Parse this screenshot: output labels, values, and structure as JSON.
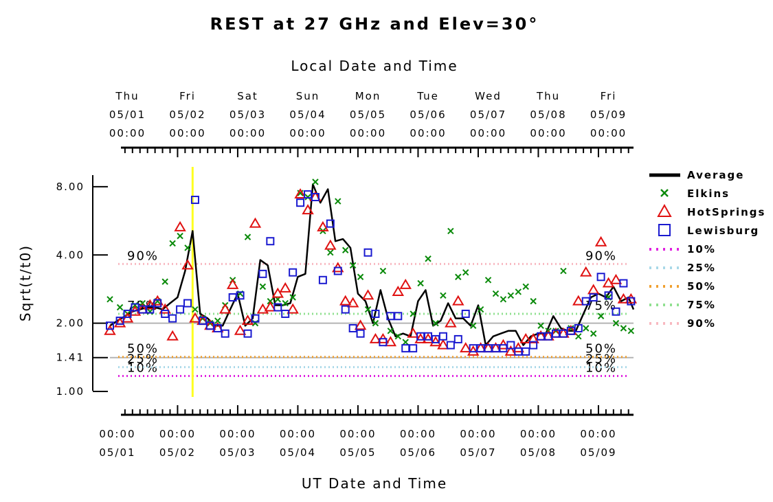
{
  "chart_data": {
    "type": "scatter",
    "title": "REST at 27 GHz and Elev=30°",
    "xlabel_top": "Local Date and Time",
    "xlabel_bottom": "UT Date and Time",
    "ylabel": "Sqrt(t/t0)",
    "x_range": [
      "04/30 21:00",
      "05/09 14:00"
    ],
    "ylim": [
      1.0,
      9.0
    ],
    "y_scale": "log",
    "y_ticks": [
      "1.00",
      "1.41",
      "2.00",
      "4.00",
      "8.00"
    ],
    "y_tick_values": [
      1.0,
      1.41,
      2.0,
      4.0,
      8.0
    ],
    "top_ticks": [
      {
        "day": "Thu",
        "date": "05/01",
        "time": "00:00"
      },
      {
        "day": "Fri",
        "date": "05/02",
        "time": "00:00"
      },
      {
        "day": "Sat",
        "date": "05/03",
        "time": "00:00"
      },
      {
        "day": "Sun",
        "date": "05/04",
        "time": "00:00"
      },
      {
        "day": "Mon",
        "date": "05/05",
        "time": "00:00"
      },
      {
        "day": "Tue",
        "date": "05/06",
        "time": "00:00"
      },
      {
        "day": "Wed",
        "date": "05/07",
        "time": "00:00"
      },
      {
        "day": "Thu",
        "date": "05/08",
        "time": "00:00"
      },
      {
        "day": "Fri",
        "date": "05/09",
        "time": "00:00"
      }
    ],
    "bottom_ticks": [
      {
        "time": "00:00",
        "date": "05/01"
      },
      {
        "time": "00:00",
        "date": "05/02"
      },
      {
        "time": "00:00",
        "date": "05/03"
      },
      {
        "time": "00:00",
        "date": "05/04"
      },
      {
        "time": "00:00",
        "date": "05/05"
      },
      {
        "time": "00:00",
        "date": "05/06"
      },
      {
        "time": "00:00",
        "date": "05/07"
      },
      {
        "time": "00:00",
        "date": "05/08"
      },
      {
        "time": "00:00",
        "date": "05/09"
      }
    ],
    "current_time": "05/02 06:00",
    "reference_lines": [
      1.41,
      2.0
    ],
    "percentiles": [
      {
        "name": "10%",
        "value": 1.17,
        "color": "#e020e0",
        "show_label": true
      },
      {
        "name": "25%",
        "value": 1.28,
        "color": "#a8d8e8",
        "show_label": true
      },
      {
        "name": "50%",
        "value": 1.42,
        "color": "#f0a030",
        "show_label": true
      },
      {
        "name": "75%",
        "value": 2.2,
        "color": "#90e090",
        "show_label": true
      },
      {
        "name": "90%",
        "value": 3.65,
        "color": "#f8b8c0",
        "show_label": true
      }
    ],
    "series": [
      {
        "name": "Average",
        "style": "line",
        "color": "#000000",
        "x": [
          "04/30 21:00",
          "05/01 00:00",
          "05/01 03:00",
          "05/01 06:00",
          "05/01 09:00",
          "05/01 12:00",
          "05/01 15:00",
          "05/01 18:00",
          "05/01 21:00",
          "05/02 00:00",
          "05/02 03:00",
          "05/02 06:00",
          "05/02 09:00",
          "05/02 12:00",
          "05/02 15:00",
          "05/02 18:00",
          "05/02 21:00",
          "05/03 00:00",
          "05/03 03:00",
          "05/03 06:00",
          "05/03 09:00",
          "05/03 12:00",
          "05/03 15:00",
          "05/03 18:00",
          "05/03 21:00",
          "05/04 00:00",
          "05/04 03:00",
          "05/04 06:00",
          "05/04 09:00",
          "05/04 12:00",
          "05/04 15:00",
          "05/04 18:00",
          "05/04 21:00",
          "05/05 00:00",
          "05/05 03:00",
          "05/05 06:00",
          "05/05 09:00",
          "05/05 12:00",
          "05/05 15:00",
          "05/05 18:00",
          "05/05 21:00",
          "05/06 00:00",
          "05/06 03:00",
          "05/06 06:00",
          "05/06 09:00",
          "05/06 12:00",
          "05/06 15:00",
          "05/06 18:00",
          "05/06 21:00",
          "05/07 00:00",
          "05/07 03:00",
          "05/07 06:00",
          "05/07 09:00",
          "05/07 12:00",
          "05/07 15:00",
          "05/07 18:00",
          "05/07 21:00",
          "05/08 00:00",
          "05/08 03:00",
          "05/08 06:00",
          "05/08 09:00",
          "05/08 12:00",
          "05/08 15:00",
          "05/08 18:00",
          "05/08 21:00",
          "05/09 00:00",
          "05/09 03:00",
          "05/09 06:00",
          "05/09 09:00",
          "05/09 12:00",
          "05/09 14:00"
        ],
        "y": [
          1.95,
          2.05,
          2.15,
          2.25,
          2.3,
          2.35,
          2.35,
          2.3,
          2.45,
          2.6,
          3.4,
          5.1,
          2.2,
          2.1,
          1.95,
          1.95,
          2.3,
          2.7,
          1.95,
          2.1,
          3.8,
          3.6,
          2.4,
          2.4,
          2.45,
          3.2,
          3.3,
          8.2,
          6.8,
          7.8,
          4.6,
          4.7,
          4.3,
          2.7,
          2.5,
          2.0,
          2.8,
          2.1,
          1.75,
          1.8,
          1.75,
          2.5,
          2.8,
          1.95,
          2.05,
          2.45,
          2.1,
          2.1,
          1.95,
          2.4,
          1.6,
          1.75,
          1.8,
          1.85,
          1.85,
          1.6,
          1.75,
          1.8,
          1.8,
          2.15,
          1.9,
          1.85,
          1.85,
          2.2,
          2.6,
          2.7,
          2.6,
          2.9,
          2.5,
          2.6,
          2.3
        ]
      },
      {
        "name": "Elkins",
        "style": "x",
        "color": "#0a8a0a",
        "x": [
          "04/30 21:00",
          "05/01 01:00",
          "05/01 04:00",
          "05/01 07:00",
          "05/01 10:00",
          "05/01 13:00",
          "05/01 16:00",
          "05/01 19:00",
          "05/01 22:00",
          "05/02 01:00",
          "05/02 04:00",
          "05/02 07:00",
          "05/02 10:00",
          "05/02 13:00",
          "05/02 16:00",
          "05/02 19:00",
          "05/02 22:00",
          "05/03 01:00",
          "05/03 04:00",
          "05/03 07:00",
          "05/03 10:00",
          "05/03 13:00",
          "05/03 16:00",
          "05/03 19:00",
          "05/03 22:00",
          "05/04 01:00",
          "05/04 04:00",
          "05/04 07:00",
          "05/04 10:00",
          "05/04 13:00",
          "05/04 16:00",
          "05/04 19:00",
          "05/04 22:00",
          "05/05 01:00",
          "05/05 04:00",
          "05/05 07:00",
          "05/05 10:00",
          "05/05 13:00",
          "05/05 16:00",
          "05/05 19:00",
          "05/05 22:00",
          "05/06 01:00",
          "05/06 04:00",
          "05/06 07:00",
          "05/06 10:00",
          "05/06 13:00",
          "05/06 16:00",
          "05/06 19:00",
          "05/06 22:00",
          "05/07 01:00",
          "05/07 04:00",
          "05/07 07:00",
          "05/07 10:00",
          "05/07 13:00",
          "05/07 16:00",
          "05/07 19:00",
          "05/07 22:00",
          "05/08 01:00",
          "05/08 04:00",
          "05/08 07:00",
          "05/08 10:00",
          "05/08 13:00",
          "05/08 16:00",
          "05/08 19:00",
          "05/08 22:00",
          "05/09 01:00",
          "05/09 04:00",
          "05/09 07:00",
          "05/09 10:00",
          "05/09 13:00"
        ],
        "y": [
          2.55,
          2.35,
          2.2,
          2.4,
          2.45,
          2.25,
          2.5,
          3.05,
          4.5,
          4.85,
          4.3,
          2.3,
          2.1,
          2.0,
          2.05,
          2.4,
          3.1,
          2.7,
          4.8,
          2.0,
          2.9,
          2.5,
          2.55,
          2.45,
          2.6,
          7.5,
          7.2,
          8.4,
          5.1,
          4.1,
          6.9,
          4.2,
          3.6,
          3.2,
          2.3,
          2.0,
          3.4,
          1.85,
          1.75,
          1.65,
          2.2,
          3.0,
          3.85,
          2.0,
          2.65,
          5.1,
          3.2,
          3.35,
          1.95,
          2.3,
          3.1,
          2.7,
          2.55,
          2.65,
          2.75,
          2.9,
          2.5,
          1.95,
          1.85,
          1.85,
          3.4,
          1.9,
          1.75,
          1.9,
          1.8,
          2.15,
          2.6,
          2.0,
          1.9,
          1.85
        ]
      },
      {
        "name": "HotSprings",
        "style": "triangle",
        "color": "#e01010",
        "x": [
          "04/30 21:00",
          "05/01 01:00",
          "05/01 04:00",
          "05/01 07:00",
          "05/01 10:00",
          "05/01 13:00",
          "05/01 16:00",
          "05/01 19:00",
          "05/01 22:00",
          "05/02 01:00",
          "05/02 04:00",
          "05/02 07:00",
          "05/02 10:00",
          "05/02 13:00",
          "05/02 16:00",
          "05/02 19:00",
          "05/02 22:00",
          "05/03 01:00",
          "05/03 04:00",
          "05/03 07:00",
          "05/03 10:00",
          "05/03 13:00",
          "05/03 16:00",
          "05/03 19:00",
          "05/03 22:00",
          "05/04 01:00",
          "05/04 04:00",
          "05/04 07:00",
          "05/04 10:00",
          "05/04 13:00",
          "05/04 16:00",
          "05/04 19:00",
          "05/04 22:00",
          "05/05 01:00",
          "05/05 04:00",
          "05/05 07:00",
          "05/05 10:00",
          "05/05 13:00",
          "05/05 16:00",
          "05/05 19:00",
          "05/05 22:00",
          "05/06 01:00",
          "05/06 04:00",
          "05/06 07:00",
          "05/06 10:00",
          "05/06 13:00",
          "05/06 16:00",
          "05/06 19:00",
          "05/06 22:00",
          "05/07 01:00",
          "05/07 04:00",
          "05/07 07:00",
          "05/07 10:00",
          "05/07 13:00",
          "05/07 16:00",
          "05/07 19:00",
          "05/07 22:00",
          "05/08 01:00",
          "05/08 04:00",
          "05/08 07:00",
          "05/08 10:00",
          "05/08 13:00",
          "05/08 16:00",
          "05/08 19:00",
          "05/08 22:00",
          "05/09 01:00",
          "05/09 04:00",
          "05/09 07:00",
          "05/09 10:00",
          "05/09 13:00"
        ],
        "y": [
          1.85,
          2.0,
          2.1,
          2.25,
          2.3,
          2.4,
          2.5,
          2.3,
          1.75,
          5.3,
          3.6,
          2.1,
          2.05,
          1.95,
          1.9,
          2.3,
          2.95,
          1.85,
          2.05,
          5.5,
          2.3,
          2.35,
          2.7,
          2.85,
          2.3,
          7.4,
          6.3,
          7.2,
          5.3,
          4.4,
          3.5,
          2.5,
          2.45,
          1.95,
          2.65,
          1.7,
          1.7,
          1.65,
          2.75,
          2.95,
          1.8,
          1.7,
          1.7,
          1.65,
          1.6,
          2.0,
          2.5,
          1.55,
          1.5,
          1.55,
          1.55,
          1.55,
          1.6,
          1.5,
          1.55,
          1.7,
          1.7,
          1.75,
          1.75,
          1.8,
          1.8,
          1.85,
          2.5,
          3.35,
          2.8,
          4.55,
          3.0,
          3.1,
          2.55,
          2.55
        ]
      },
      {
        "name": "Lewisburg",
        "style": "square",
        "color": "#1a1ad0",
        "x": [
          "04/30 21:00",
          "05/01 01:00",
          "05/01 04:00",
          "05/01 07:00",
          "05/01 10:00",
          "05/01 13:00",
          "05/01 16:00",
          "05/01 19:00",
          "05/01 22:00",
          "05/02 01:00",
          "05/02 04:00",
          "05/02 07:00",
          "05/02 10:00",
          "05/02 13:00",
          "05/02 16:00",
          "05/02 19:00",
          "05/02 22:00",
          "05/03 01:00",
          "05/03 04:00",
          "05/03 07:00",
          "05/03 10:00",
          "05/03 13:00",
          "05/03 16:00",
          "05/03 19:00",
          "05/03 22:00",
          "05/04 01:00",
          "05/04 04:00",
          "05/04 07:00",
          "05/04 10:00",
          "05/04 13:00",
          "05/04 16:00",
          "05/04 19:00",
          "05/04 22:00",
          "05/05 01:00",
          "05/05 04:00",
          "05/05 07:00",
          "05/05 10:00",
          "05/05 13:00",
          "05/05 16:00",
          "05/05 19:00",
          "05/05 22:00",
          "05/06 01:00",
          "05/06 04:00",
          "05/06 07:00",
          "05/06 10:00",
          "05/06 13:00",
          "05/06 16:00",
          "05/06 19:00",
          "05/06 22:00",
          "05/07 01:00",
          "05/07 04:00",
          "05/07 07:00",
          "05/07 10:00",
          "05/07 13:00",
          "05/07 16:00",
          "05/07 19:00",
          "05/07 22:00",
          "05/08 01:00",
          "05/08 04:00",
          "05/08 07:00",
          "05/08 10:00",
          "05/08 13:00",
          "05/08 16:00",
          "05/08 19:00",
          "05/08 22:00",
          "05/09 01:00",
          "05/09 04:00",
          "05/09 07:00",
          "05/09 10:00",
          "05/09 13:00"
        ],
        "y": [
          1.95,
          2.05,
          2.2,
          2.35,
          2.3,
          2.3,
          2.45,
          2.2,
          2.1,
          2.3,
          2.45,
          7.0,
          2.05,
          1.95,
          1.9,
          1.8,
          2.6,
          2.65,
          1.8,
          2.1,
          3.3,
          4.6,
          2.35,
          2.2,
          3.35,
          6.8,
          7.4,
          7.2,
          3.1,
          5.5,
          3.4,
          2.3,
          1.9,
          1.8,
          4.1,
          2.2,
          1.65,
          2.15,
          2.15,
          1.55,
          1.55,
          1.75,
          1.75,
          1.7,
          1.75,
          1.6,
          1.7,
          2.2,
          1.55,
          1.55,
          1.55,
          1.55,
          1.55,
          1.6,
          1.5,
          1.5,
          1.6,
          1.75,
          1.75,
          1.8,
          1.8,
          1.85,
          1.9,
          2.5,
          2.6,
          3.2,
          2.65,
          2.25,
          3.0,
          2.5
        ]
      }
    ],
    "legend": {
      "placement": "right",
      "entries": [
        {
          "name": "Average",
          "style": "line",
          "color": "#000000"
        },
        {
          "name": "Elkins",
          "style": "x",
          "color": "#0a8a0a"
        },
        {
          "name": "HotSprings",
          "style": "triangle",
          "color": "#e01010"
        },
        {
          "name": "Lewisburg",
          "style": "square",
          "color": "#1a1ad0"
        },
        {
          "name": "10%",
          "style": "dots",
          "color": "#e020e0"
        },
        {
          "name": "25%",
          "style": "dots",
          "color": "#a8d8e8"
        },
        {
          "name": "50%",
          "style": "dots",
          "color": "#f0a030"
        },
        {
          "name": "75%",
          "style": "dots",
          "color": "#90e090"
        },
        {
          "name": "90%",
          "style": "dots",
          "color": "#f8b8c0"
        }
      ]
    },
    "colors": {
      "now_line": "#ffff20",
      "ref_line": "#b4b4b4"
    }
  }
}
